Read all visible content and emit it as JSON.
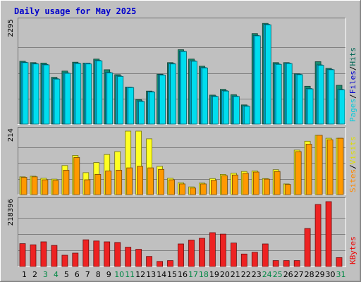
{
  "chart_data": {
    "type": "bar",
    "title": "Daily usage for May 2025",
    "categories": [
      "1",
      "2",
      "3",
      "4",
      "5",
      "6",
      "7",
      "8",
      "9",
      "10",
      "11",
      "12",
      "13",
      "14",
      "15",
      "16",
      "17",
      "18",
      "19",
      "20",
      "21",
      "22",
      "23",
      "24",
      "25",
      "26",
      "27",
      "28",
      "29",
      "30",
      "31"
    ],
    "weekend_days": [
      "3",
      "4",
      "10",
      "11",
      "17",
      "18",
      "24",
      "25",
      "31"
    ],
    "panels": [
      {
        "y_max_label": "2295",
        "y_max": 2295,
        "legend": [
          "Pages",
          "/",
          "Files",
          "/",
          "Hits"
        ],
        "legend_colors": [
          "#00ccdd",
          "#000000",
          "#0000cc",
          "#000000",
          "#006655"
        ],
        "series": [
          {
            "name": "Hits",
            "color": "#1a8a6e",
            "values": [
              1410,
              1380,
              1370,
              1050,
              1190,
              1390,
              1370,
              1460,
              1220,
              1110,
              830,
              550,
              740,
              1120,
              1380,
              1670,
              1460,
              1300,
              650,
              780,
              660,
              430,
              2030,
              2260,
              1380,
              1380,
              1130,
              850,
              1400,
              1250,
              870
            ]
          },
          {
            "name": "Files",
            "color": "#00b0dd",
            "values": [
              1390,
              1360,
              1340,
              1020,
              1150,
              1370,
              1370,
              1430,
              1160,
              1080,
              830,
              520,
              730,
              1110,
              1360,
              1640,
              1420,
              1270,
              630,
              750,
              630,
              410,
              1990,
              2240,
              1350,
              1370,
              1120,
              800,
              1330,
              1230,
              780
            ]
          },
          {
            "name": "Pages",
            "color": "#00ddee",
            "values": [
              1380,
              1350,
              1330,
              1010,
              1140,
              1360,
              1350,
              1420,
              1150,
              1070,
              820,
              510,
              720,
              1100,
              1350,
              1630,
              1410,
              1260,
              620,
              740,
              620,
              400,
              1980,
              2230,
              1340,
              1360,
              1110,
              790,
              1320,
              1220,
              770
            ]
          }
        ]
      },
      {
        "y_max_label": "214",
        "y_max": 214,
        "legend": [
          "Sites",
          "/",
          "Visits"
        ],
        "legend_colors": [
          "#ff8800",
          "#000000",
          "#dddd00"
        ],
        "series": [
          {
            "name": "Visits",
            "color": "#ffff22",
            "values": [
              60,
              62,
              55,
              52,
              98,
              132,
              74,
              108,
              135,
              145,
              214,
              214,
              188,
              95,
              55,
              40,
              26,
              39,
              54,
              68,
              72,
              78,
              80,
              54,
              84,
              36,
              150,
              180,
              200,
              190,
              190
            ]
          },
          {
            "name": "Sites",
            "color": "#ff9900",
            "values": [
              58,
              60,
              50,
              48,
              82,
              125,
              50,
              68,
              80,
              82,
              90,
              95,
              90,
              85,
              50,
              36,
              22,
              36,
              48,
              64,
              66,
              72,
              76,
              52,
              78,
              34,
              145,
              170,
              200,
              185,
              190
            ]
          }
        ]
      },
      {
        "y_max_label": "218396",
        "y_max": 218396,
        "legend": [
          "KBytes"
        ],
        "legend_colors": [
          "#ee0000"
        ],
        "series": [
          {
            "name": "KBytes",
            "color": "#ee2222",
            "values": [
              77000,
              73000,
              83000,
              71000,
              38000,
              45000,
              90000,
              86000,
              83000,
              81000,
              65000,
              58000,
              34000,
              17000,
              20000,
              76000,
              89000,
              95000,
              114000,
              109000,
              79000,
              42000,
              48000,
              76000,
              20000,
              20000,
              20000,
              128000,
              209000,
              218396,
              30000
            ]
          }
        ]
      }
    ]
  }
}
